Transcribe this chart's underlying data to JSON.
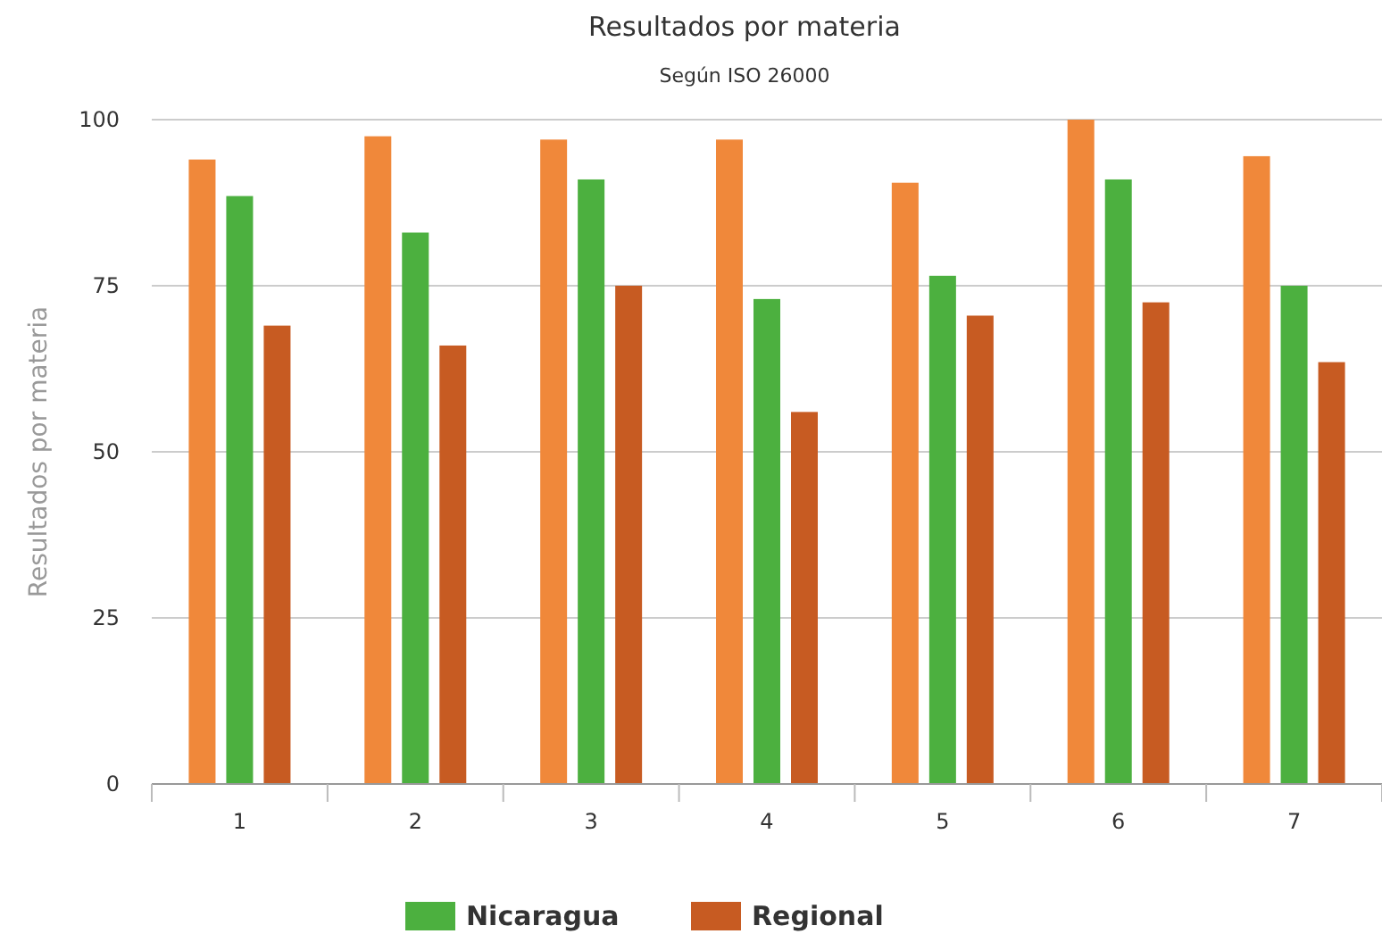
{
  "chart_data": {
    "type": "bar",
    "title": "Resultados por materia",
    "subtitle": "Según ISO 26000",
    "ylabel": "Resultados por materia",
    "categories": [
      "1",
      "2",
      "3",
      "4",
      "5",
      "6",
      "7"
    ],
    "series": [
      {
        "color": "#f0883a",
        "values": [
          94,
          97.5,
          97,
          97,
          90.5,
          100,
          94.5
        ]
      },
      {
        "name": "Nicaragua",
        "color": "#4cb03f",
        "values": [
          88.5,
          83,
          91,
          73,
          76.5,
          91,
          75
        ]
      },
      {
        "name": "Regional",
        "color": "#c75b22",
        "values": [
          69,
          66,
          75,
          56,
          70.5,
          72.5,
          63.5
        ]
      }
    ],
    "ylim": [
      0,
      100
    ],
    "yticks": [
      0,
      25,
      50,
      75,
      100
    ],
    "grid": "y",
    "legend": "bottom"
  }
}
